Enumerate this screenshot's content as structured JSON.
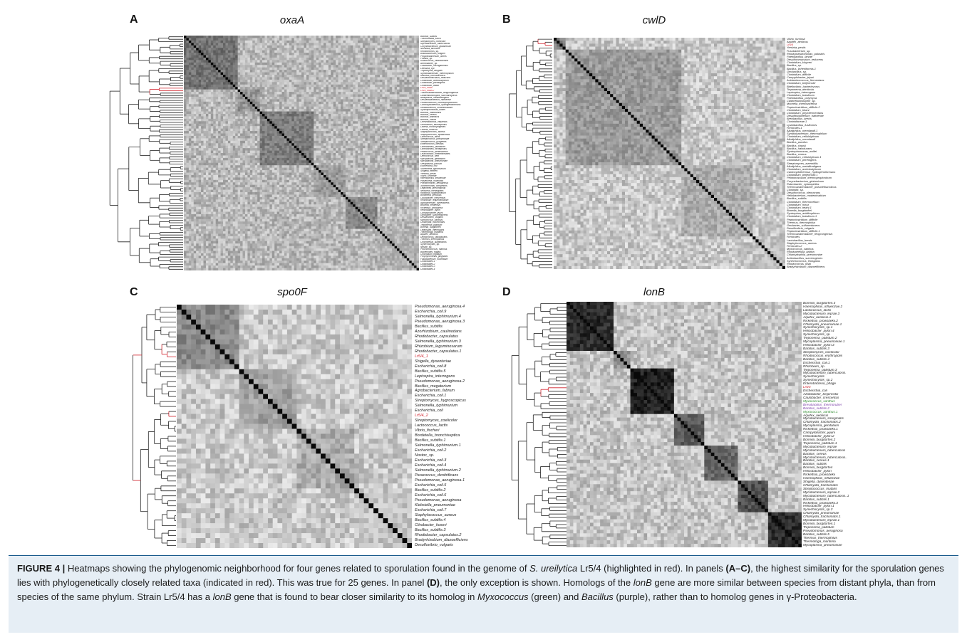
{
  "panels": [
    {
      "letter": "A",
      "gene": "oxaA",
      "labels": [
        "Bacillus_subtilis",
        "Thermobifida_fusca",
        "Streptomyces_coelicolor",
        "Mycobacterium_tuberculosis",
        "Corynebacterium_glutamicum",
        "Nocardia_farcinica",
        "Rhodococcus_sp.",
        "Bifidobacterium_longum",
        "Propionibacterium_acnes",
        "Frankia_sp.",
        "Kineococcus_radiotolerans",
        "Arthrobacter_sp.",
        "Clavibacter_michiganensis",
        "Leifsonia_xyli",
        "Tropheryma_whipplei",
        "Symbiobacterium_thermophilum",
        "Moorella_thermoacetica",
        "Desulfotomaculum_reducens",
        "Clostridium_acetobutylicum",
        "Clostridium_perfringens",
        "Clostridium_tetani",
        "Lr5/4_oxaA",
        "Lr5/4_oxaA.2",
        "Thermoanaerobacter_tengcongensis",
        "Caldicellulosiruptor_saccharolyticus",
        "Alkaliphilus_metalliredigens",
        "Desulfitobacterium_hafniense",
        "Pelotomaculum_thermopropionicum",
        "Carboxydothermus_hydrogenoformans",
        "Heliobacterium_modesticaldum",
        "Syntrophomonas_wolfei",
        "Bacillus_halodurans",
        "Bacillus_cereus",
        "Bacillus_anthracis",
        "Bacillus_clausii",
        "Oceanobacillus_iheyensis",
        "Geobacillus_kaustophilus",
        "Listeria_monocytogenes",
        "Listeria_innocua",
        "Staphylococcus_aureus",
        "Staphylococcus_epidermidis",
        "Lactococcus_lactis",
        "Streptococcus_pneumoniae",
        "Streptococcus_pyogenes",
        "Enterococcus_faecalis",
        "Lactobacillus_plantarum",
        "Lactobacillus_acidophilus",
        "Pediococcus_pentosaceus",
        "Leuconostoc_mesenteroides",
        "Oenococcus_oeni",
        "Mycoplasma_genitalium",
        "Mycoplasma_pneumoniae",
        "Ureaplasma_parvum",
        "Escherichia_coli",
        "Salmonella_typhimurium",
        "Shigella_flexneri",
        "Yersinia_pestis",
        "Vibrio_cholerae",
        "Haemophilus_influenzae",
        "Pasteurella_multocida",
        "Pseudomonas_aeruginosa",
        "Xanthomonas_campestris",
        "Legionella_pneumophila",
        "Neisseria_meningitidis",
        "Ralstonia_solanacearum",
        "Bordetella_pertussis",
        "Caulobacter_crescentus",
        "Rhizobium_leguminosarum",
        "Agrobacterium_tumefaciens",
        "Brucella_melitensis",
        "Rickettsia_prowazekii",
        "Helicobacter_pylori",
        "Campylobacter_jejuni",
        "Geobacter_sulfurreducens",
        "Desulfovibrio_vulgaris",
        "Myxococcus_xanthus",
        "Chlamydia_trachomatis",
        "Treponema_pallidum",
        "Borrelia_burgdorferi",
        "Leptospira_interrogans",
        "Thermotoga_maritima",
        "Aquifex_aeolicus",
        "Deinococcus_radiodurans",
        "Thermus_thermophilus",
        "Chloroflexus_aurantiacus",
        "Synechocystis_sp.",
        "Nostoc_sp.",
        "Prochlorococcus_marinus",
        "Bacteroides_fragilis",
        "Chlorobium_tepidum",
        "Porphyromonas_gingivalis",
        "Fusobacterium_nucleatum",
        "Clostridiales.1",
        "Clostridiales.2",
        "Clostridiales.3",
        "Clostridiales.4"
      ],
      "red_labels": [
        "Lr5/4_oxaA",
        "Lr5/4_oxaA.2"
      ]
    },
    {
      "letter": "B",
      "gene": "cwlD",
      "labels": [
        "Vibrio_furnissii",
        "Aquifex_aeolicus",
        "Lr5/4",
        "Yersinia_pestis",
        "Fusobacterium_sp.",
        "Rhodopseudomonas_palustris",
        "Paenibacillus_larvae",
        "Desulfotomaculum_reducens",
        "Clostridium_kluyveri",
        "Bacillus_sp.",
        "Bacillus_licheniformis.1",
        "Geobacillus_sp.",
        "Clostridium_difficile",
        "Campylobacter_jejuni",
        "Acidaminococcus_fermentans",
        "Clostridium_beijerinckii",
        "Bdellovibrio_bacteriovorus",
        "Treponema_denticola",
        "Leptospira_interrogans",
        "Clostridium_botulinum",
        "Paenibacillus_polymyxa",
        "Caldicellulosiruptor_sp.",
        "Moorella_thermoacetica",
        "Peptoclostridium_difficile.2",
        "Clostridium_tetani",
        "Clostridium_phytofermentans",
        "Desulfitobacterium_hafniense",
        "Brevibacillus_brevis",
        "Clostridiaceae.1",
        "Lysinibacillus_fusiformis",
        "Firmicutes.1",
        "Alkaliphilus_oremlandii.1",
        "Symbiobacterium_thermophilum",
        "Clostridium_cellulolyticum",
        "Alkaliphilus_oremlandii",
        "Bacillus_pumilus",
        "Bacillus_clausii",
        "Bacillus_halodurans",
        "Syntrophomonas_wolfei",
        "Bacillus_cereus",
        "Clostridium_cellulolyticum.1",
        "Clostridium_perfringens",
        "Streptomyces_avermitilis",
        "Alkaliphilus_metalliredigens",
        "Clostridium_acetobutylicum",
        "Carboxydothermus_hydrogenoformans",
        "Clostridium_beijerinckii.1",
        "Pelotomaculum_thermopropionicum",
        "Corynebacterium_glutamicum",
        "Rubrobacter_xylanophilus",
        "Thermoanaerobacter_pseudethanolicus",
        "Clostridia_sp.",
        "Desulfococcus_oleovorans",
        "Heliobacterium_modesticaldum",
        "Bacillus_subtilis",
        "Clostridium_thermocellum",
        "Clostridium_novyi",
        "Clostridium_tetani.1",
        "Borrelia_burgdorferi",
        "Syntrophus_aciditrophicus",
        "Clostridium_botulinum.1",
        "Peptoclostridium_difficile",
        "Thermus_thermophilus",
        "Geobacter_sulfurreducens",
        "Desulfovibrio_vulgaris",
        "Peptoclostridium_difficile.1",
        "Thermoanaerobacter_tengcongensis",
        "Firmicutes",
        "Lactobacillus_brevis",
        "Staphylococcus_aureus",
        "Firmicutes.2",
        "Myxococcus_xanthus",
        "Rhodopirellula_baltica",
        "Chlamydophila_pneumoniae",
        "Actinobacillus_succinogenes",
        "Synechococcus_elongatus",
        "Rhodococcus_jostii",
        "Bradyrhizobium_diazoefficiens"
      ],
      "red_labels": [
        "Lr5/4"
      ]
    },
    {
      "letter": "C",
      "gene": "spo0F",
      "labels": [
        "Pseudomonas_aeruginosa.4",
        "Escherichia_coli.9",
        "Salmonella_typhimurium.4",
        "Pseudomonas_aeruginosa.3",
        "Bacillus_subtilis",
        "Azorhizobium_caulinodans",
        "Rhodobacter_capsulatus",
        "Salmonella_typhimurium.3",
        "Rhizobium_leguminosarum",
        "Rhodobacter_capsulatus.1",
        "Lr5/4_1",
        "Shigella_dysenteriae",
        "Escherichia_coli.8",
        "Bacillus_subtilis.5",
        "Leptospira_interrogans",
        "Pseudomonas_aeruginosa.2",
        "Bacillus_megaterium",
        "Agrobacterium_fabrum",
        "Escherichia_coli.1",
        "Streptomyces_hygroscopicus",
        "Salmonella_typhimurium",
        "Escherichia_coli",
        "Lr5/4_2",
        "Streptomyces_coelicolor",
        "Lactococcus_lactis",
        "Vibrio_fischeri",
        "Bordetella_bronchiseptica",
        "Bacillus_subtilis.1",
        "Salmonella_typhimurium.1",
        "Escherichia_coli.2",
        "Nostoc_sp.",
        "Escherichia_coli.3",
        "Escherichia_coli.4",
        "Salmonella_typhimurium.2",
        "Paracoccus_denitrificans",
        "Pseudomonas_aeruginosa.1",
        "Escherichia_coli.5",
        "Bacillus_subtilis.2",
        "Escherichia_coli.6",
        "Pseudomonas_aeruginosa",
        "Klebsiella_pneumoniae",
        "Escherichia_coli.7",
        "Staphylococcus_aureus",
        "Bacillus_subtilis.4",
        "Citrobacter_koseri",
        "Bacillus_subtilis.3",
        "Rhodobacter_capsulatus.2",
        "Bradyrhizobium_diazoefficiens",
        "Desulfovibrio_vulgaris"
      ],
      "red_labels": [
        "Lr5/4_1",
        "Lr5/4_2"
      ]
    },
    {
      "letter": "D",
      "gene": "lonB",
      "labels": [
        "Borrelia_burgdorferi.3",
        "Haemophilus_influenzae.2",
        "Lactococcus_lactis",
        "Mycobacterium_leprae.3",
        "Aquifex_aeolicus.1",
        "Rickettsia_prowazekii.2",
        "Chlamydia_pneumoniae.1",
        "Synechocystis_sp.1",
        "Helicobacter_pylori.4",
        "Synechocystis_sp.",
        "Treponema_pallidum.2",
        "Mycoplasma_pneumoniae.1",
        "Helicobacter_pylori.3",
        "Bacillus_subtilis.3",
        "Streptomyces_coelicolor",
        "Rhodococcus_erythropolis",
        "Bacillus_subtilis.4",
        "Escherichia_coli.1",
        "Rhizobium_sp.",
        "Treponema_pallidum.3",
        "Mycobacterium_tuberculosis.",
        "Synechocystis",
        "Synechocystis_sp.2",
        "Enterobacteria_phage",
        "Lr5/4",
        "Escherichia_coli",
        "Azotobacter_beijerinckii",
        "Caulobacter_crescentus",
        "Myxococcus_xanthus",
        "Brevibacillus_thermoruber",
        "Bacillus_subtilis.2",
        "Myxococcus_xanthus.1",
        "Aquifex_aeolicus",
        "Mycobacterium_smegmatis",
        "Chlamydia_trachomatis.2",
        "Mycoplasma_genitalium",
        "Rickettsia_prowazekii.1",
        "Campylobacter_jejuni",
        "Helicobacter_pylori.2",
        "Borrelia_burgdorferi.2",
        "Treponema_pallidum.1",
        "Mycobacterium_leprae",
        "Mycobacterium_tuberculosis",
        "Bacillus_cereus",
        "Mycobacterium_tuberculosis..",
        "Bacillus_cereus.1",
        "Bacillus_subtilis",
        "Borrelia_burgdorferi",
        "Helicobacter_pylori",
        "Rickettsia_prowazekii",
        "Haemophilus_influenzae",
        "Shigella_dysenteriae",
        "Chlamydia_trachomatis",
        "Streptococcus_mutans",
        "Mycobacterium_leprae.2",
        "Mycobacterium_tuberculosis..1",
        "Bacillus_subtilis.1",
        "Rickettsia_prowazekii.3",
        "Helicobacter_pylori.1",
        "Synechocystis_sp.3",
        "Chlamydia_pneumoniae",
        "Chlamydia_trachomatis.1",
        "Mycobacterium_leprae.1",
        "Borrelia_burgdorferi.1",
        "Treponema_pallidum",
        "Pseudomonas_aeruginosa",
        "Bacillus_subtilis.5",
        "Thermus_thermophilus",
        "Thermotoga_maritima",
        "Mycoplasma_pneumoniae"
      ],
      "red_labels": [
        "Lr5/4"
      ],
      "green_labels": [
        "Myxococcus_xanthus",
        "Myxococcus_xanthus.1"
      ],
      "purple_labels": [
        "Brevibacillus_thermoruber",
        "Bacillus_subtilis.2"
      ]
    }
  ],
  "caption": {
    "figure_label": "FIGURE 4 |",
    "s1": " Heatmaps showing the phylogenomic neighborhood for four genes related to sporulation found in the genome of ",
    "s1_italic": "S. ureilytica",
    "s2": " Lr5/4 (highlighted in red). In panels ",
    "s2_bold": "(A–C)",
    "s3": ", the highest similarity for the sporulation genes lies with phylogenetically closely related taxa (indicated in red). This was true for 25 genes. In panel ",
    "s3_bold": "(D)",
    "s4": ", the only exception is shown. Homologs of the ",
    "s4_italic": "lonB",
    "s5": " gene are more similar between species from distant phyla, than from species of the same phylum. Strain Lr5/4 has a ",
    "s5_italic": "lonB",
    "s6": " gene that is found to bear closer similarity to its homolog in ",
    "s6_italic": "Myxococcus",
    "s7": " (green) and ",
    "s7_italic": "Bacillus",
    "s8": " (purple), rather than to homolog genes in γ-Proteobacteria."
  },
  "colors": {
    "caption_rule": "#1a5b8c",
    "caption_bg": "#e6eef5",
    "highlight_red": "#d0202a",
    "highlight_green": "#2e8b2e",
    "highlight_purple": "#7b3fa8"
  }
}
